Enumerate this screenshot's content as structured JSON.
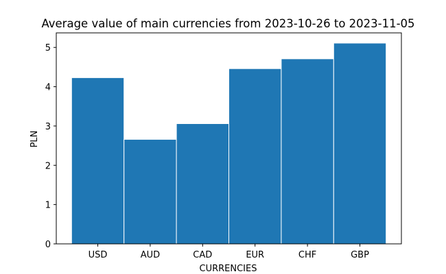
{
  "chart_data": {
    "type": "bar",
    "title": "Average value of main currencies from 2023-10-26 to 2023-11-05",
    "xlabel": "CURRENCIES",
    "ylabel": "PLN",
    "categories": [
      "USD",
      "AUD",
      "CAD",
      "EUR",
      "CHF",
      "GBP"
    ],
    "values": [
      4.23,
      2.66,
      3.06,
      4.46,
      4.71,
      5.11
    ],
    "ylim": [
      0,
      5.37
    ],
    "yticks": [
      "0",
      "1",
      "2",
      "3",
      "4",
      "5"
    ],
    "grid": false,
    "legend": "none",
    "colors": {
      "bar": "#1f77b4",
      "bar_edge": "#ffffff",
      "axis": "#000000"
    }
  }
}
